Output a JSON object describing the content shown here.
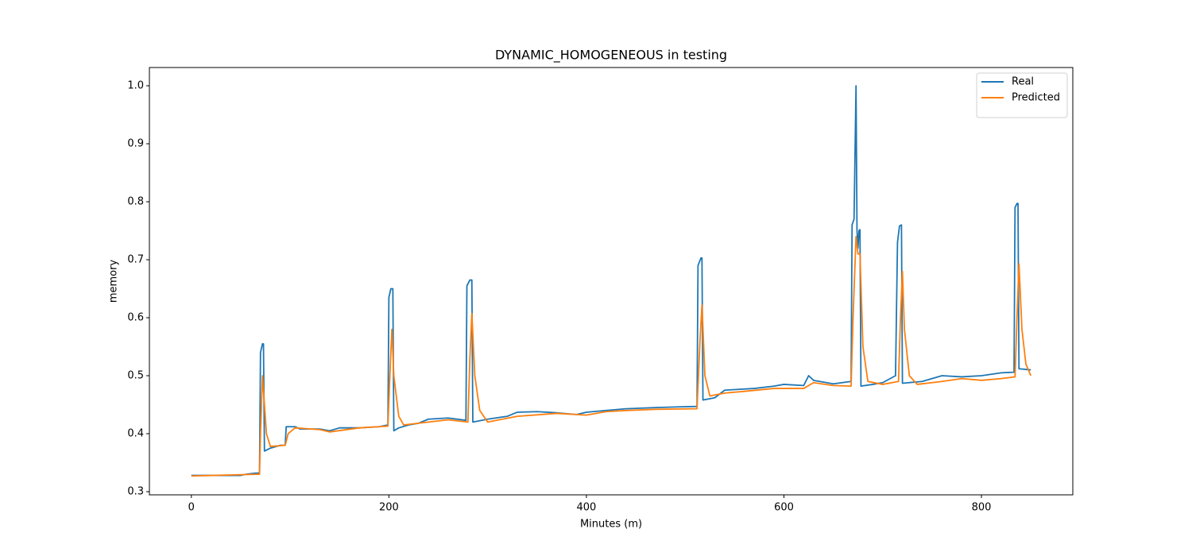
{
  "chart_data": {
    "type": "line",
    "title": "DYNAMIC_HOMOGENEOUS in testing",
    "x_label": "Minutes (m)",
    "y_label": "memory",
    "xlim": [
      -42.5,
      892.5
    ],
    "ylim": [
      0.2945,
      1.0315
    ],
    "xticks": [
      0,
      200,
      400,
      600,
      800
    ],
    "yticks": [
      0.3,
      0.4,
      0.5,
      0.6,
      0.7,
      0.8,
      0.9,
      {
        "value": 1,
        "label": "1.0"
      }
    ],
    "legend": "upper right",
    "series": [
      {
        "name": "Real",
        "color": "#1f77b4",
        "x": [
          0,
          50,
          55,
          65,
          69,
          70,
          72,
          73,
          74,
          80,
          90,
          95,
          96,
          105,
          110,
          130,
          140,
          150,
          170,
          190,
          199,
          200,
          202,
          204,
          205,
          210,
          220,
          230,
          240,
          260,
          278,
          279,
          282,
          284,
          285,
          300,
          320,
          330,
          350,
          370,
          390,
          400,
          420,
          440,
          470,
          490,
          512,
          513,
          516,
          517,
          518,
          530,
          540,
          550,
          570,
          590,
          600,
          620,
          625,
          630,
          650,
          668,
          669,
          671,
          673,
          674,
          675,
          676,
          677,
          678,
          690,
          700,
          713,
          715,
          717,
          719,
          720,
          740,
          760,
          780,
          800,
          820,
          833,
          834,
          836,
          837,
          838,
          850
        ],
        "values": [
          0.328,
          0.328,
          0.33,
          0.332,
          0.332,
          0.54,
          0.555,
          0.555,
          0.37,
          0.375,
          0.38,
          0.38,
          0.412,
          0.412,
          0.408,
          0.408,
          0.405,
          0.41,
          0.41,
          0.412,
          0.415,
          0.635,
          0.65,
          0.65,
          0.405,
          0.41,
          0.415,
          0.418,
          0.425,
          0.427,
          0.423,
          0.655,
          0.665,
          0.665,
          0.42,
          0.425,
          0.43,
          0.437,
          0.438,
          0.436,
          0.433,
          0.437,
          0.44,
          0.443,
          0.445,
          0.446,
          0.447,
          0.69,
          0.703,
          0.703,
          0.458,
          0.462,
          0.475,
          0.476,
          0.478,
          0.482,
          0.485,
          0.483,
          0.5,
          0.492,
          0.486,
          0.49,
          0.76,
          0.77,
          1.0,
          0.75,
          0.72,
          0.75,
          0.752,
          0.482,
          0.485,
          0.488,
          0.5,
          0.73,
          0.758,
          0.76,
          0.487,
          0.49,
          0.5,
          0.498,
          0.5,
          0.505,
          0.506,
          0.79,
          0.797,
          0.797,
          0.512,
          0.51
        ]
      },
      {
        "name": "Predicted",
        "color": "#ff7f0e",
        "x": [
          0,
          65,
          69,
          70,
          72,
          74,
          76,
          80,
          95,
          98,
          105,
          130,
          140,
          170,
          199,
          201,
          203,
          205,
          210,
          215,
          240,
          260,
          280,
          282,
          284,
          287,
          292,
          300,
          330,
          370,
          400,
          420,
          440,
          470,
          512,
          515,
          517,
          520,
          525,
          540,
          560,
          590,
          620,
          630,
          650,
          668,
          670,
          673,
          675,
          677,
          680,
          685,
          700,
          716,
          718,
          720,
          722,
          727,
          735,
          760,
          780,
          800,
          820,
          834,
          836,
          838,
          841,
          845,
          850
        ],
        "values": [
          0.327,
          0.33,
          0.33,
          0.4,
          0.5,
          0.45,
          0.4,
          0.378,
          0.38,
          0.4,
          0.41,
          0.407,
          0.403,
          0.41,
          0.413,
          0.5,
          0.58,
          0.5,
          0.43,
          0.415,
          0.42,
          0.424,
          0.42,
          0.53,
          0.607,
          0.5,
          0.44,
          0.42,
          0.43,
          0.435,
          0.432,
          0.438,
          0.44,
          0.442,
          0.443,
          0.56,
          0.622,
          0.5,
          0.465,
          0.47,
          0.473,
          0.478,
          0.478,
          0.488,
          0.483,
          0.482,
          0.6,
          0.74,
          0.71,
          0.71,
          0.55,
          0.49,
          0.485,
          0.49,
          0.6,
          0.68,
          0.58,
          0.5,
          0.485,
          0.49,
          0.495,
          0.492,
          0.495,
          0.498,
          0.6,
          0.693,
          0.58,
          0.52,
          0.5
        ]
      }
    ]
  }
}
